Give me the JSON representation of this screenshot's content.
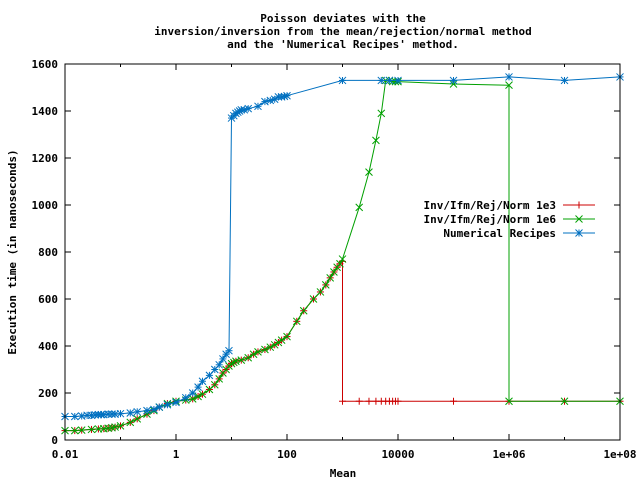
{
  "chart_data": {
    "type": "line",
    "title": [
      "Poisson deviates with the",
      "inversion/inversion from the mean/rejection/normal method",
      "and the 'Numerical Recipes' method."
    ],
    "xlabel": "Mean",
    "ylabel": "Execution time (in nanoseconds)",
    "xscale": "log",
    "xlim": [
      0.01,
      100000000
    ],
    "ylim": [
      0,
      1600
    ],
    "xtick_labels": [
      "0.01",
      "1",
      "100",
      "10000",
      "1e+06",
      "1e+08"
    ],
    "ytick_labels": [
      "0",
      "200",
      "400",
      "600",
      "800",
      "1000",
      "1200",
      "1400",
      "1600"
    ],
    "grid": false,
    "legend_position": "right",
    "series": [
      {
        "name": "Inv/Ifm/Rej/Norm 1e3",
        "color": "#cc0000",
        "marker": "plus",
        "x": [
          0.01,
          0.015,
          0.02,
          0.03,
          0.04,
          0.05,
          0.06,
          0.07,
          0.08,
          0.1,
          0.15,
          0.2,
          0.3,
          0.4,
          0.5,
          0.7,
          1,
          1.5,
          2,
          2.5,
          3,
          4,
          5,
          6,
          7,
          8,
          9,
          10,
          11,
          12,
          15,
          20,
          25,
          30,
          40,
          50,
          60,
          70,
          80,
          100,
          150,
          200,
          300,
          400,
          500,
          600,
          700,
          800,
          900,
          1000,
          1000,
          2000,
          3000,
          4000,
          5000,
          6000,
          7000,
          8000,
          9000,
          10000,
          100000,
          1000000,
          10000000,
          100000000
        ],
        "y": [
          40,
          40,
          42,
          45,
          47,
          48,
          50,
          52,
          55,
          60,
          75,
          90,
          110,
          125,
          140,
          155,
          165,
          170,
          175,
          185,
          195,
          215,
          235,
          260,
          285,
          300,
          315,
          325,
          330,
          335,
          340,
          350,
          365,
          375,
          385,
          395,
          405,
          415,
          425,
          440,
          505,
          550,
          600,
          630,
          660,
          690,
          715,
          735,
          750,
          760,
          165,
          165,
          165,
          165,
          165,
          165,
          165,
          165,
          165,
          165,
          165,
          165,
          165,
          165
        ]
      },
      {
        "name": "Inv/Ifm/Rej/Norm 1e6",
        "color": "#00a000",
        "marker": "cross",
        "x": [
          0.01,
          0.015,
          0.02,
          0.03,
          0.04,
          0.05,
          0.06,
          0.07,
          0.08,
          0.1,
          0.15,
          0.2,
          0.3,
          0.4,
          0.5,
          0.7,
          1,
          1.5,
          2,
          2.5,
          3,
          4,
          5,
          6,
          7,
          8,
          9,
          10,
          11,
          12,
          15,
          20,
          25,
          30,
          40,
          50,
          60,
          70,
          80,
          100,
          150,
          200,
          300,
          400,
          500,
          600,
          700,
          800,
          900,
          1000,
          2000,
          3000,
          4000,
          5000,
          6000,
          7000,
          8000,
          9000,
          10000,
          100000,
          1000000,
          1000000,
          10000000,
          100000000
        ],
        "y": [
          40,
          40,
          42,
          45,
          47,
          48,
          50,
          52,
          55,
          60,
          75,
          90,
          110,
          125,
          140,
          155,
          165,
          170,
          175,
          185,
          195,
          215,
          235,
          260,
          285,
          300,
          315,
          325,
          330,
          335,
          340,
          350,
          365,
          375,
          385,
          395,
          405,
          415,
          425,
          440,
          505,
          550,
          600,
          630,
          660,
          690,
          715,
          735,
          750,
          770,
          990,
          1140,
          1275,
          1390,
          1530,
          1530,
          1525,
          1525,
          1525,
          1515,
          1510,
          165,
          165,
          165
        ]
      },
      {
        "name": "Numerical Recipes",
        "color": "#0070c0",
        "marker": "star",
        "x": [
          0.01,
          0.015,
          0.02,
          0.025,
          0.03,
          0.035,
          0.04,
          0.045,
          0.05,
          0.06,
          0.07,
          0.08,
          0.1,
          0.15,
          0.2,
          0.3,
          0.4,
          0.5,
          0.7,
          1,
          1.5,
          2,
          2.5,
          3,
          4,
          5,
          6,
          7,
          8,
          9,
          10,
          11,
          12,
          13,
          14,
          15,
          17,
          20,
          30,
          40,
          50,
          60,
          70,
          80,
          90,
          100,
          1000,
          5000,
          7000,
          10000,
          100000,
          1000000,
          10000000,
          100000000
        ],
        "y": [
          100,
          100,
          102,
          105,
          105,
          107,
          108,
          108,
          108,
          110,
          110,
          110,
          112,
          115,
          120,
          125,
          130,
          140,
          150,
          160,
          180,
          200,
          225,
          250,
          275,
          300,
          320,
          345,
          365,
          380,
          1370,
          1380,
          1390,
          1395,
          1400,
          1405,
          1405,
          1410,
          1420,
          1440,
          1445,
          1450,
          1460,
          1460,
          1462,
          1465,
          1530,
          1530,
          1530,
          1530,
          1530,
          1545,
          1530,
          1545
        ]
      }
    ]
  }
}
